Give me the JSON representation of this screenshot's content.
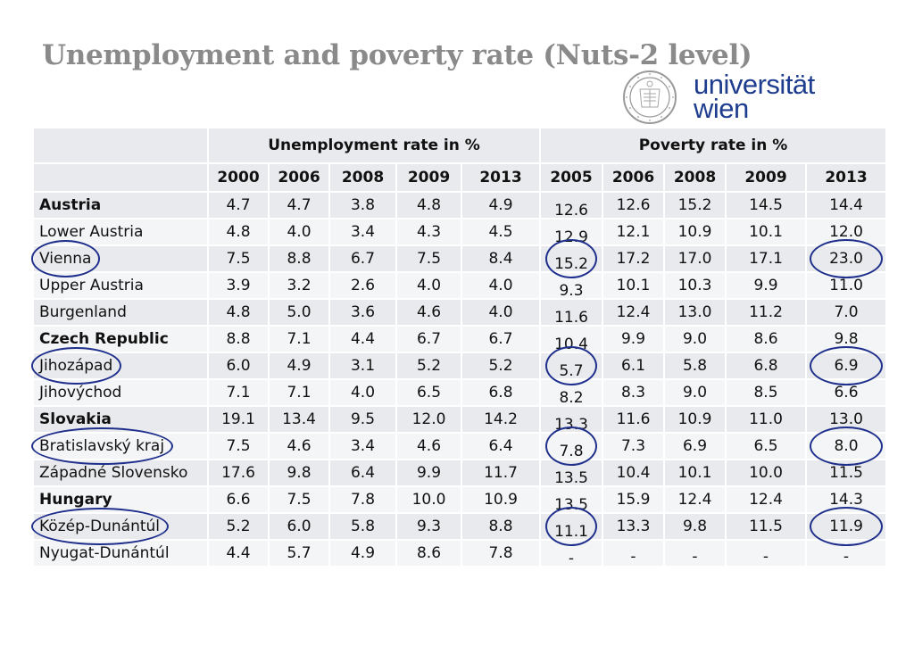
{
  "title": "Unemployment and poverty rate (Nuts-2 level)",
  "logo": {
    "line1": "universität",
    "line2": "wien"
  },
  "colors": {
    "title": "#8a8a8a",
    "brand": "#1e3d8f",
    "highlight": "#1f2f8c",
    "row_dark": "#e9eaed",
    "row_light": "#f4f5f7"
  },
  "table": {
    "group_headers": {
      "unemployment": "Unemployment rate in %",
      "poverty": "Poverty rate in %"
    },
    "unemployment_years": [
      "2000",
      "2006",
      "2008",
      "2009",
      "2013"
    ],
    "poverty_years": [
      "2005",
      "2006",
      "2008",
      "2009",
      "2013"
    ],
    "rows": [
      {
        "name": "Austria",
        "bold": true,
        "u": [
          "4.7",
          "4.7",
          "3.8",
          "4.8",
          "4.9"
        ],
        "p": [
          "12.6",
          "12.6",
          "15.2",
          "14.5",
          "14.4"
        ]
      },
      {
        "name": "Lower Austria",
        "bold": false,
        "u": [
          "4.8",
          "4.0",
          "3.4",
          "4.3",
          "4.5"
        ],
        "p": [
          "12.9",
          "12.1",
          "10.9",
          "10.1",
          "12.0"
        ]
      },
      {
        "name": "Vienna",
        "bold": false,
        "u": [
          "7.5",
          "8.8",
          "6.7",
          "7.5",
          "8.4"
        ],
        "p": [
          "15.2",
          "17.2",
          "17.0",
          "17.1",
          "23.0"
        ]
      },
      {
        "name": "Upper Austria",
        "bold": false,
        "u": [
          "3.9",
          "3.2",
          "2.6",
          "4.0",
          "4.0"
        ],
        "p": [
          "9.3",
          "10.1",
          "10.3",
          "9.9",
          "11.0"
        ]
      },
      {
        "name": "Burgenland",
        "bold": false,
        "u": [
          "4.8",
          "5.0",
          "3.6",
          "4.6",
          "4.0"
        ],
        "p": [
          "11.6",
          "12.4",
          "13.0",
          "11.2",
          "7.0"
        ]
      },
      {
        "name": "Czech Republic",
        "bold": true,
        "u": [
          "8.8",
          "7.1",
          "4.4",
          "6.7",
          "6.7"
        ],
        "p": [
          "10.4",
          "9.9",
          "9.0",
          "8.6",
          "9.8"
        ]
      },
      {
        "name": "Jihozápad",
        "bold": false,
        "u": [
          "6.0",
          "4.9",
          "3.1",
          "5.2",
          "5.2"
        ],
        "p": [
          "5.7",
          "6.1",
          "5.8",
          "6.8",
          "6.9"
        ]
      },
      {
        "name": "Jihovýchod",
        "bold": false,
        "u": [
          "7.1",
          "7.1",
          "4.0",
          "6.5",
          "6.8"
        ],
        "p": [
          "8.2",
          "8.3",
          "9.0",
          "8.5",
          "6.6"
        ]
      },
      {
        "name": "Slovakia",
        "bold": true,
        "u": [
          "19.1",
          "13.4",
          "9.5",
          "12.0",
          "14.2"
        ],
        "p": [
          "13.3",
          "11.6",
          "10.9",
          "11.0",
          "13.0"
        ]
      },
      {
        "name": "Bratislavský kraj",
        "bold": false,
        "u": [
          "7.5",
          "4.6",
          "3.4",
          "4.6",
          "6.4"
        ],
        "p": [
          "7.8",
          "7.3",
          "6.9",
          "6.5",
          "8.0"
        ]
      },
      {
        "name": "Západné Slovensko",
        "bold": false,
        "u": [
          "17.6",
          "9.8",
          "6.4",
          "9.9",
          "11.7"
        ],
        "p": [
          "13.5",
          "10.4",
          "10.1",
          "10.0",
          "11.5"
        ]
      },
      {
        "name": "Hungary",
        "bold": true,
        "u": [
          "6.6",
          "7.5",
          "7.8",
          "10.0",
          "10.9"
        ],
        "p": [
          "13.5",
          "15.9",
          "12.4",
          "12.4",
          "14.3"
        ]
      },
      {
        "name": "Közép-Dunántúl",
        "bold": false,
        "u": [
          "5.2",
          "6.0",
          "5.8",
          "9.3",
          "8.8"
        ],
        "p": [
          "11.1",
          "13.3",
          "9.8",
          "11.5",
          "11.9"
        ]
      },
      {
        "name": "Nyugat-Dunántúl",
        "bold": false,
        "u": [
          "4.4",
          "5.7",
          "4.9",
          "8.6",
          "7.8"
        ],
        "p": [
          "-",
          "-",
          "-",
          "-",
          "-"
        ]
      }
    ],
    "circled_rows": [
      "Vienna",
      "Jihozápad",
      "Bratislavský kraj",
      "Közép-Dunántúl"
    ]
  }
}
